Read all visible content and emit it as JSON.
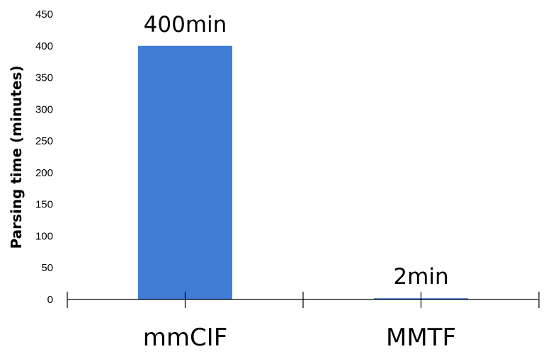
{
  "chart_data": {
    "type": "bar",
    "categories": [
      "mmCIF",
      "MMTF"
    ],
    "values": [
      400,
      2
    ],
    "data_labels": [
      "400min",
      "2min"
    ],
    "title": "",
    "xlabel": "",
    "ylabel": "Parsing time (minutes)",
    "ylim": [
      0,
      450
    ],
    "yticks": [
      0,
      50,
      100,
      150,
      200,
      250,
      300,
      350,
      400,
      450
    ],
    "grid": false,
    "legend": "none",
    "colors": {
      "bar": "#3f7dd6",
      "axis": "#000000"
    }
  }
}
